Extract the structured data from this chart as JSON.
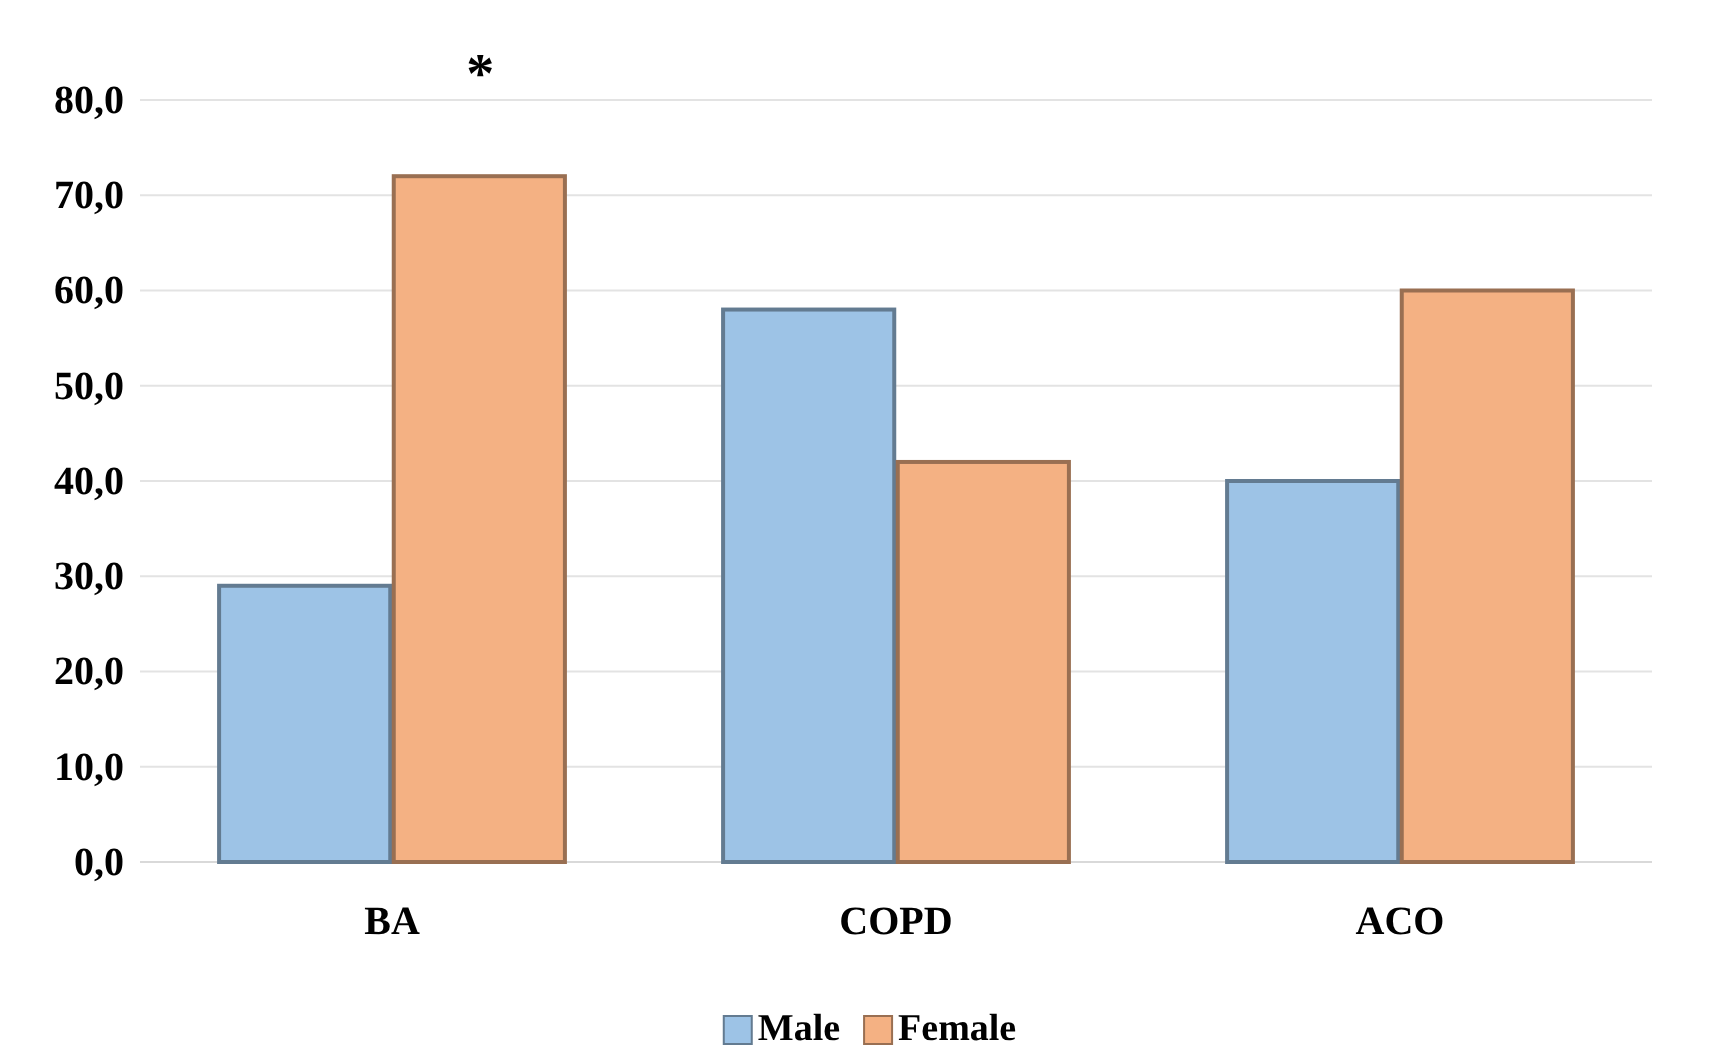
{
  "chart_data": {
    "type": "bar",
    "categories": [
      "BA",
      "COPD",
      "ACO"
    ],
    "series": [
      {
        "name": "Male",
        "color": "#9dc3e6",
        "values": [
          29,
          58,
          40
        ]
      },
      {
        "name": "Female",
        "color": "#f4b183",
        "values": [
          72,
          42,
          60
        ]
      }
    ],
    "ylim": [
      0,
      80
    ],
    "yticks": [
      {
        "value": 0,
        "label": "0,0"
      },
      {
        "value": 10,
        "label": "10,0"
      },
      {
        "value": 20,
        "label": "20,0"
      },
      {
        "value": 30,
        "label": "30,0"
      },
      {
        "value": 40,
        "label": "40,0"
      },
      {
        "value": 50,
        "label": "50,0"
      },
      {
        "value": 60,
        "label": "60,0"
      },
      {
        "value": 70,
        "label": "70,0"
      },
      {
        "value": 80,
        "label": "80,0"
      }
    ],
    "grid": "y",
    "legend": "bottom",
    "annotations": [
      "*"
    ]
  }
}
